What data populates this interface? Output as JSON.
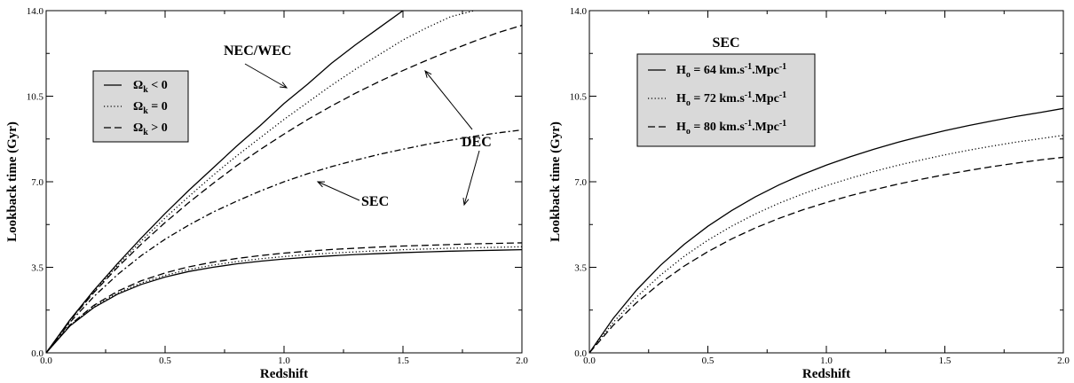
{
  "chart_data": [
    {
      "type": "line",
      "xlabel": "Redshift",
      "ylabel": "Lookback time (Gyr)",
      "xlim": [
        0.0,
        2.0
      ],
      "ylim": [
        0.0,
        14.0
      ],
      "x_ticks": [
        "0.0",
        "0.5",
        "1.0",
        "1.5",
        "2.0"
      ],
      "y_ticks": [
        "0.0",
        "3.5",
        "7.0",
        "10.5",
        "14.0"
      ],
      "grid": false,
      "legend": {
        "placement": "upper-left",
        "entries": [
          {
            "symbol": "Ω",
            "sub": "k",
            "rel": " < 0",
            "style": "solid"
          },
          {
            "symbol": "Ω",
            "sub": "k",
            "rel": " = 0",
            "style": "dotted"
          },
          {
            "symbol": "Ω",
            "sub": "k",
            "rel": " > 0",
            "style": "dashed"
          }
        ]
      },
      "annotations": [
        {
          "text": "NEC/WEC"
        },
        {
          "text": "DEC"
        },
        {
          "text": "SEC"
        }
      ],
      "series": [
        {
          "group": "NEC/WEC",
          "style": "solid",
          "x": [
            0,
            0.1,
            0.2,
            0.3,
            0.4,
            0.5,
            0.6,
            0.7,
            0.8,
            0.9,
            1.0,
            1.1,
            1.2,
            1.3,
            1.4,
            1.5
          ],
          "y": [
            0,
            1.35,
            2.55,
            3.65,
            4.7,
            5.7,
            6.65,
            7.55,
            8.45,
            9.3,
            10.2,
            11.0,
            11.85,
            12.6,
            13.3,
            14.0
          ]
        },
        {
          "group": "NEC/WEC",
          "style": "dotted",
          "x": [
            0,
            0.1,
            0.2,
            0.3,
            0.4,
            0.5,
            0.6,
            0.7,
            0.8,
            0.9,
            1.0,
            1.1,
            1.2,
            1.3,
            1.4,
            1.5,
            1.6,
            1.7,
            1.8
          ],
          "y": [
            0,
            1.33,
            2.5,
            3.58,
            4.58,
            5.52,
            6.4,
            7.25,
            8.05,
            8.8,
            9.55,
            10.25,
            10.95,
            11.6,
            12.2,
            12.8,
            13.3,
            13.75,
            14.0
          ]
        },
        {
          "group": "NEC/WEC",
          "style": "dashed",
          "x": [
            0,
            0.1,
            0.2,
            0.3,
            0.4,
            0.5,
            0.6,
            0.7,
            0.8,
            0.9,
            1.0,
            1.1,
            1.2,
            1.3,
            1.4,
            1.5,
            1.6,
            1.7,
            1.8,
            1.9,
            2.0
          ],
          "y": [
            0,
            1.32,
            2.46,
            3.5,
            4.45,
            5.33,
            6.15,
            6.92,
            7.65,
            8.32,
            8.95,
            9.55,
            10.1,
            10.62,
            11.1,
            11.55,
            11.97,
            12.37,
            12.75,
            13.1,
            13.4
          ]
        },
        {
          "group": "SEC",
          "style": "dashdot",
          "x": [
            0,
            0.1,
            0.2,
            0.3,
            0.4,
            0.5,
            0.6,
            0.7,
            0.8,
            0.9,
            1.0,
            1.1,
            1.2,
            1.3,
            1.4,
            1.5,
            1.6,
            1.7,
            1.8,
            1.9,
            2.0
          ],
          "y": [
            0,
            1.25,
            2.3,
            3.2,
            3.98,
            4.65,
            5.23,
            5.75,
            6.2,
            6.62,
            7.0,
            7.33,
            7.62,
            7.88,
            8.12,
            8.33,
            8.53,
            8.7,
            8.86,
            9.0,
            9.12
          ]
        },
        {
          "group": "DEC",
          "style": "solid",
          "x": [
            0,
            0.1,
            0.2,
            0.3,
            0.4,
            0.5,
            0.6,
            0.7,
            0.8,
            0.9,
            1.0,
            1.1,
            1.2,
            1.3,
            1.4,
            1.5,
            1.6,
            1.7,
            1.8,
            1.9,
            2.0
          ],
          "y": [
            0,
            1.1,
            1.85,
            2.4,
            2.8,
            3.1,
            3.33,
            3.5,
            3.64,
            3.75,
            3.84,
            3.91,
            3.97,
            4.02,
            4.06,
            4.1,
            4.13,
            4.16,
            4.18,
            4.2,
            4.22
          ]
        },
        {
          "group": "DEC",
          "style": "dotted",
          "x": [
            0,
            0.1,
            0.2,
            0.3,
            0.4,
            0.5,
            0.6,
            0.7,
            0.8,
            0.9,
            1.0,
            1.1,
            1.2,
            1.3,
            1.4,
            1.5,
            1.6,
            1.7,
            1.8,
            1.9,
            2.0
          ],
          "y": [
            0,
            1.12,
            1.89,
            2.45,
            2.86,
            3.17,
            3.41,
            3.59,
            3.73,
            3.85,
            3.94,
            4.02,
            4.08,
            4.13,
            4.18,
            4.22,
            4.25,
            4.28,
            4.3,
            4.32,
            4.34
          ]
        },
        {
          "group": "DEC",
          "style": "dashed",
          "x": [
            0,
            0.1,
            0.2,
            0.3,
            0.4,
            0.5,
            0.6,
            0.7,
            0.8,
            0.9,
            1.0,
            1.1,
            1.2,
            1.3,
            1.4,
            1.5,
            1.6,
            1.7,
            1.8,
            1.9,
            2.0
          ],
          "y": [
            0,
            1.14,
            1.94,
            2.52,
            2.95,
            3.27,
            3.52,
            3.71,
            3.86,
            3.98,
            4.08,
            4.16,
            4.23,
            4.28,
            4.33,
            4.37,
            4.4,
            4.43,
            4.46,
            4.48,
            4.5
          ]
        }
      ]
    },
    {
      "type": "line",
      "title": "SEC",
      "xlabel": "Redshift",
      "ylabel": "Lookback time (Gyr)",
      "xlim": [
        0.0,
        2.0
      ],
      "ylim": [
        0.0,
        14.0
      ],
      "x_ticks": [
        "0.0",
        "0.5",
        "1.0",
        "1.5",
        "2.0"
      ],
      "y_ticks": [
        "0.0",
        "3.5",
        "7.0",
        "10.5",
        "14.0"
      ],
      "grid": false,
      "legend": {
        "placement": "upper-left",
        "entries": [
          {
            "symbol": "H",
            "sub": "o",
            "rel": " = 64 km.s",
            "sup1": "-1",
            "mid": ".Mpc",
            "sup2": "-1",
            "style": "solid"
          },
          {
            "symbol": "H",
            "sub": "o",
            "rel": " = 72 km.s",
            "sup1": "-1",
            "mid": ".Mpc",
            "sup2": "-1",
            "style": "dotted"
          },
          {
            "symbol": "H",
            "sub": "o",
            "rel": " = 80 km.s",
            "sup1": "-1",
            "mid": ".Mpc",
            "sup2": "-1",
            "style": "dashed"
          }
        ]
      },
      "series": [
        {
          "name": "H_o = 64 km.s^-1.Mpc^-1",
          "style": "solid",
          "x": [
            0,
            0.1,
            0.2,
            0.3,
            0.4,
            0.5,
            0.6,
            0.7,
            0.8,
            0.9,
            1.0,
            1.1,
            1.2,
            1.3,
            1.4,
            1.5,
            1.6,
            1.7,
            1.8,
            1.9,
            2.0
          ],
          "y": [
            0,
            1.4,
            2.58,
            3.58,
            4.44,
            5.18,
            5.82,
            6.38,
            6.87,
            7.3,
            7.68,
            8.02,
            8.33,
            8.61,
            8.86,
            9.09,
            9.3,
            9.49,
            9.67,
            9.83,
            10.0
          ]
        },
        {
          "name": "H_o = 72 km.s^-1.Mpc^-1",
          "style": "dotted",
          "x": [
            0,
            0.1,
            0.2,
            0.3,
            0.4,
            0.5,
            0.6,
            0.7,
            0.8,
            0.9,
            1.0,
            1.1,
            1.2,
            1.3,
            1.4,
            1.5,
            1.6,
            1.7,
            1.8,
            1.9,
            2.0
          ],
          "y": [
            0,
            1.24,
            2.29,
            3.18,
            3.95,
            4.61,
            5.18,
            5.68,
            6.12,
            6.5,
            6.84,
            7.14,
            7.42,
            7.67,
            7.89,
            8.1,
            8.29,
            8.46,
            8.62,
            8.76,
            8.9
          ]
        },
        {
          "name": "H_o = 80 km.s^-1.Mpc^-1",
          "style": "dashed",
          "x": [
            0,
            0.1,
            0.2,
            0.3,
            0.4,
            0.5,
            0.6,
            0.7,
            0.8,
            0.9,
            1.0,
            1.1,
            1.2,
            1.3,
            1.4,
            1.5,
            1.6,
            1.7,
            1.8,
            1.9,
            2.0
          ],
          "y": [
            0,
            1.12,
            2.06,
            2.86,
            3.55,
            4.14,
            4.66,
            5.11,
            5.5,
            5.85,
            6.15,
            6.43,
            6.67,
            6.9,
            7.1,
            7.29,
            7.46,
            7.62,
            7.76,
            7.89,
            8.0
          ]
        }
      ]
    }
  ]
}
